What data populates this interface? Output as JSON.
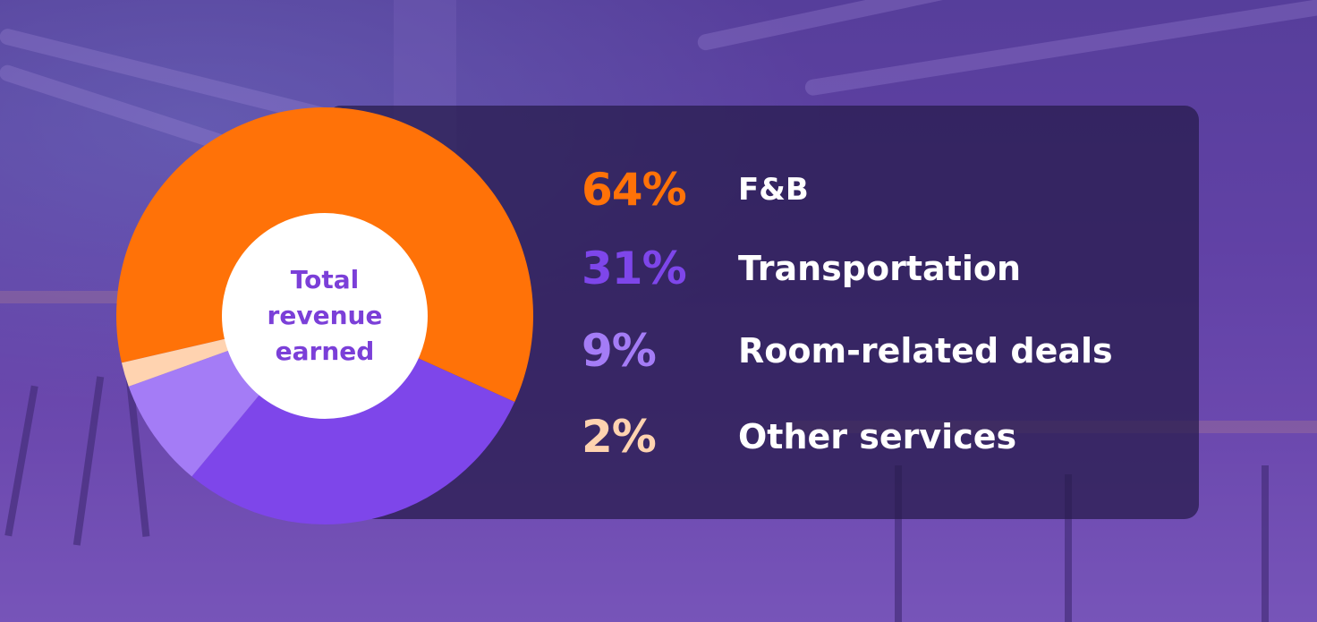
{
  "chart_data": {
    "type": "pie",
    "center_label": "Total revenue earned",
    "slices": [
      {
        "label": "F&B",
        "value_label": "64%",
        "value": 64,
        "color": "#ff7208"
      },
      {
        "label": "Transportation",
        "value_label": "31%",
        "value": 31,
        "color": "#7e46ea"
      },
      {
        "label": "Room-related deals",
        "value_label": "9%",
        "value": 9,
        "color": "#a47cf6"
      },
      {
        "label": "Other services",
        "value_label": "2%",
        "value": 2,
        "color": "#ffd3b0"
      }
    ]
  }
}
